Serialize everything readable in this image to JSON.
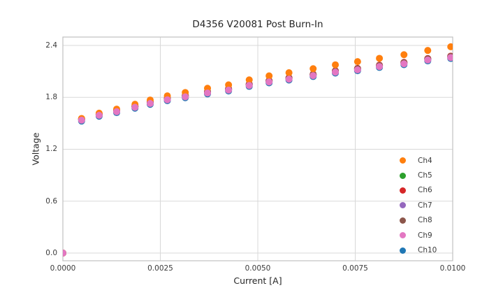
{
  "chart_data": {
    "type": "scatter",
    "title": "D4356 V20081 Post Burn-In",
    "xlabel": "Current [A]",
    "ylabel": "Voltage",
    "xlim": [
      0.0,
      0.01
    ],
    "ylim": [
      -0.089,
      2.497
    ],
    "grid": true,
    "legend_position": "right-inside",
    "xticks": {
      "values": [
        0.0,
        0.0025,
        0.005,
        0.0075,
        0.01
      ],
      "labels": [
        "0.0000",
        "0.0025",
        "0.0050",
        "0.0075",
        "0.0100"
      ]
    },
    "yticks": {
      "values": [
        0.0,
        0.6,
        1.2,
        1.8,
        2.4
      ],
      "labels": [
        "0.0",
        "0.6",
        "1.2",
        "1.8",
        "2.4"
      ]
    },
    "x": [
      0.0,
      0.00048,
      0.00093,
      0.00138,
      0.00185,
      0.00224,
      0.00268,
      0.00314,
      0.00371,
      0.00425,
      0.00478,
      0.00529,
      0.0058,
      0.00642,
      0.00699,
      0.00756,
      0.00812,
      0.00875,
      0.00936,
      0.00995
    ],
    "series": [
      {
        "name": "Ch4",
        "color": "#ff7f0e",
        "values": [
          0.0,
          1.556,
          1.617,
          1.664,
          1.72,
          1.769,
          1.817,
          1.856,
          1.905,
          1.944,
          2.002,
          2.048,
          2.085,
          2.131,
          2.176,
          2.213,
          2.251,
          2.293,
          2.342,
          2.385
        ]
      },
      {
        "name": "Ch5",
        "color": "#2ca02c",
        "values": [
          0.0,
          1.546,
          1.602,
          1.644,
          1.695,
          1.739,
          1.782,
          1.816,
          1.86,
          1.894,
          1.947,
          1.988,
          2.02,
          2.061,
          2.101,
          2.128,
          2.166,
          2.198,
          2.242,
          2.27
        ]
      },
      {
        "name": "Ch6",
        "color": "#d62728",
        "values": [
          0.0,
          1.552,
          1.608,
          1.65,
          1.701,
          1.745,
          1.788,
          1.822,
          1.866,
          1.9,
          1.953,
          1.994,
          2.026,
          2.067,
          2.107,
          2.134,
          2.172,
          2.204,
          2.248,
          2.276
        ]
      },
      {
        "name": "Ch7",
        "color": "#9467bd",
        "values": [
          0.0,
          1.543,
          1.599,
          1.641,
          1.692,
          1.736,
          1.779,
          1.813,
          1.857,
          1.891,
          1.944,
          1.985,
          2.017,
          2.058,
          2.098,
          2.125,
          2.163,
          2.195,
          2.239,
          2.267
        ]
      },
      {
        "name": "Ch8",
        "color": "#8c564b",
        "values": [
          0.0,
          1.548,
          1.604,
          1.646,
          1.697,
          1.741,
          1.784,
          1.818,
          1.862,
          1.896,
          1.949,
          1.99,
          2.022,
          2.063,
          2.103,
          2.13,
          2.168,
          2.2,
          2.244,
          2.272
        ]
      },
      {
        "name": "Ch9",
        "color": "#e377c2",
        "values": [
          0.0,
          1.536,
          1.592,
          1.634,
          1.685,
          1.729,
          1.772,
          1.806,
          1.85,
          1.884,
          1.937,
          1.978,
          2.01,
          2.051,
          2.091,
          2.118,
          2.156,
          2.188,
          2.232,
          2.26
        ]
      },
      {
        "name": "Ch10",
        "color": "#1f77b4",
        "values": [
          0.0,
          1.526,
          1.582,
          1.624,
          1.675,
          1.719,
          1.762,
          1.796,
          1.84,
          1.874,
          1.927,
          1.968,
          2.0,
          2.041,
          2.081,
          2.108,
          2.146,
          2.178,
          2.222,
          2.25
        ]
      }
    ],
    "draw_order": [
      "Ch10",
      "Ch5",
      "Ch6",
      "Ch7",
      "Ch8",
      "Ch4",
      "Ch9"
    ],
    "colors": {
      "grid": "#d8d8d8",
      "frame": "#c0c0c0",
      "text": "#262626"
    },
    "marker_radius_px": 5
  }
}
